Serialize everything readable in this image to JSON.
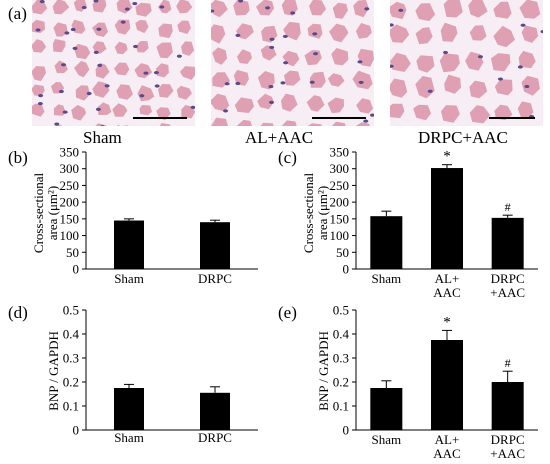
{
  "colors": {
    "bar": "#000000",
    "tissue_background": "#f7eef5",
    "fiber": "#e0a0b3",
    "nucleus": "#5a4a8c",
    "scale_bar": "#000000"
  },
  "micrographs": {
    "letter": "(a)",
    "captions": [
      "Sham",
      "AL+AAC",
      "DRPC+AAC"
    ]
  },
  "chart_data": [
    {
      "panel": "(b)",
      "type": "bar",
      "categories": [
        "Sham",
        "DRPC"
      ],
      "values": [
        145,
        140
      ],
      "errors": [
        5,
        6
      ],
      "annotations": [
        "",
        ""
      ],
      "ylabel": "Cross-sectional area (μm²)",
      "ylim": [
        0,
        350
      ],
      "yticks": [
        0,
        50,
        100,
        150,
        200,
        250,
        300,
        350
      ],
      "grid": false,
      "legend": "none"
    },
    {
      "panel": "(c)",
      "type": "bar",
      "categories": [
        "Sham",
        "AL+ AAC",
        "DRPC +AAC"
      ],
      "values": [
        158,
        302,
        153
      ],
      "errors": [
        15,
        10,
        8
      ],
      "annotations": [
        "",
        "*",
        "#"
      ],
      "ylabel": "Cross-sectional area (μm²)",
      "ylim": [
        0,
        350
      ],
      "yticks": [
        0,
        50,
        100,
        150,
        200,
        250,
        300,
        350
      ],
      "grid": false,
      "legend": "none"
    },
    {
      "panel": "(d)",
      "type": "bar",
      "categories": [
        "Sham",
        "DRPC"
      ],
      "values": [
        0.175,
        0.155
      ],
      "errors": [
        0.015,
        0.025
      ],
      "annotations": [
        "",
        ""
      ],
      "ylabel": "BNP / GAPDH",
      "ylim": [
        0,
        0.5
      ],
      "yticks": [
        "0",
        "0.1",
        "0.2",
        "0.3",
        "0.4",
        "0.5"
      ],
      "grid": false,
      "legend": "none"
    },
    {
      "panel": "(e)",
      "type": "bar",
      "categories": [
        "Sham",
        "AL+ AAC",
        "DRPC +AAC"
      ],
      "values": [
        0.175,
        0.375,
        0.2
      ],
      "errors": [
        0.03,
        0.04,
        0.045
      ],
      "annotations": [
        "",
        "*",
        "#"
      ],
      "ylabel": "BNP / GAPDH",
      "ylim": [
        0,
        0.5
      ],
      "yticks": [
        "0",
        "0.1",
        "0.2",
        "0.3",
        "0.4",
        "0.5"
      ],
      "grid": false,
      "legend": "none"
    }
  ]
}
